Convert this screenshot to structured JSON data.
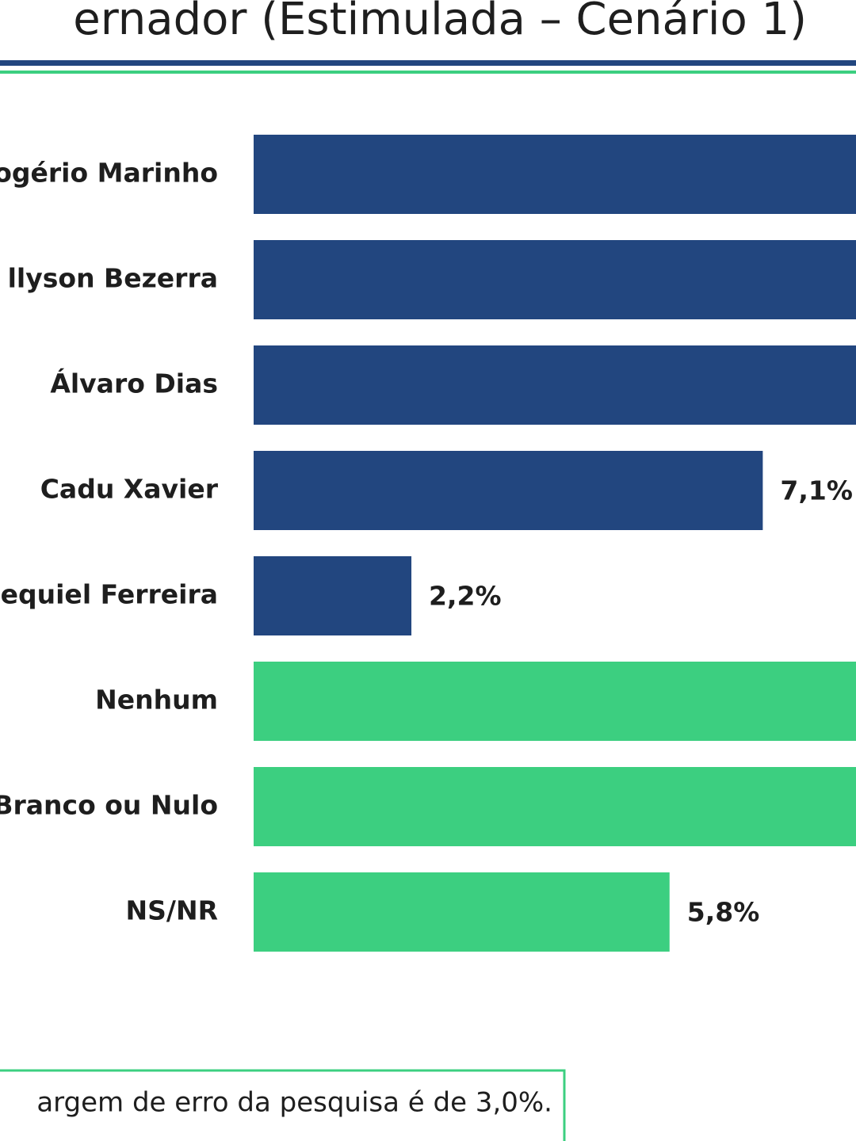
{
  "chart_data": {
    "type": "bar",
    "orientation": "horizontal",
    "title": "ernador (Estimulada – Cenário 1)",
    "categories": [
      "ogério Marinho",
      "llyson Bezerra",
      "Álvaro Dias",
      "Cadu Xavier",
      "equiel Ferreira",
      "Nenhum",
      "Branco ou Nulo",
      "NS/NR"
    ],
    "values": [
      null,
      null,
      null,
      7.1,
      2.2,
      null,
      null,
      5.8
    ],
    "value_labels": [
      null,
      null,
      null,
      "7,1%",
      "2,2%",
      null,
      null,
      "5,8%"
    ],
    "colors": [
      "#22467f",
      "#22467f",
      "#22467f",
      "#22467f",
      "#22467f",
      "#3ccf80",
      "#3ccf80",
      "#3ccf80"
    ],
    "xlim": [
      0,
      8.4
    ],
    "note": "argem de erro da pesquisa é de 3,0%."
  }
}
